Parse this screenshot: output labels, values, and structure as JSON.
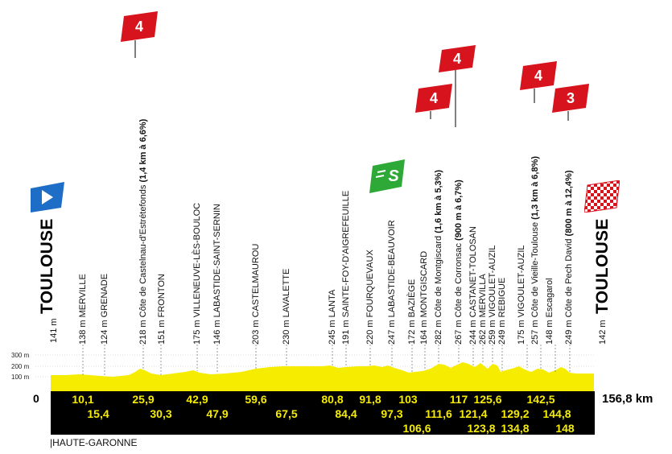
{
  "start": {
    "city": "TOULOUSE",
    "altitude": "141 m",
    "km": "0"
  },
  "finish": {
    "city": "TOULOUSE",
    "altitude": "142 m",
    "km": "156,8 km"
  },
  "axis": {
    "alt300": "300 m",
    "alt200": "200 m",
    "alt100": "100 m"
  },
  "region": "|HAUTE-GARONNE",
  "waypoints": [
    {
      "alt": "138 m",
      "name": "MERVILLE",
      "detail": ""
    },
    {
      "alt": "124 m",
      "name": "GRENADE",
      "detail": ""
    },
    {
      "alt": "218 m",
      "name": "Côte de Castelnau-d'Estrétefonds",
      "detail": "(1,4 km à 6,6%)"
    },
    {
      "alt": "151 m",
      "name": "FRONTON",
      "detail": ""
    },
    {
      "alt": "175 m",
      "name": "VILLENEUVE-LÈS-BOULOC",
      "detail": ""
    },
    {
      "alt": "146 m",
      "name": "LABASTIDE-SAINT-SERNIN",
      "detail": ""
    },
    {
      "alt": "203 m",
      "name": "CASTELMAUROU",
      "detail": ""
    },
    {
      "alt": "230 m",
      "name": "LAVALETTE",
      "detail": ""
    },
    {
      "alt": "245 m",
      "name": "LANTA",
      "detail": ""
    },
    {
      "alt": "191 m",
      "name": "SAINTE-FOY-D'AIGREFEUILLE",
      "detail": ""
    },
    {
      "alt": "220 m",
      "name": "FOURQUEVAUX",
      "detail": ""
    },
    {
      "alt": "247 m",
      "name": "LABASTIDE-BEAUVOIR",
      "detail": ""
    },
    {
      "alt": "172 m",
      "name": "BAZIÈGE",
      "detail": ""
    },
    {
      "alt": "164 m",
      "name": "MONTGISCARD",
      "detail": ""
    },
    {
      "alt": "282 m",
      "name": "Côte de Montgiscard",
      "detail": "(1,6 km à 5,3%)"
    },
    {
      "alt": "267 m",
      "name": "Côte de Corronsac",
      "detail": "(900 m à 6,7%)"
    },
    {
      "alt": "244 m",
      "name": "CASTANET-TOLOSAN",
      "detail": ""
    },
    {
      "alt": "262 m",
      "name": "MERVILLA",
      "detail": ""
    },
    {
      "alt": "259 m",
      "name": "VIGOULET-AUZIL",
      "detail": ""
    },
    {
      "alt": "249 m",
      "name": "REBIGUE",
      "detail": ""
    },
    {
      "alt": "175 m",
      "name": "VIGOULET-AUZIL",
      "detail": ""
    },
    {
      "alt": "257 m",
      "name": "Côte de Vieille-Toulouse",
      "detail": "(1,3 km à 6,8%)"
    },
    {
      "alt": "148 m",
      "name": "Escagarol",
      "detail": ""
    },
    {
      "alt": "249 m",
      "name": "Côte de Pech David",
      "detail": "(800 m à 12,4%)"
    }
  ],
  "km_marks": [
    "10,1",
    "15,4",
    "25,9",
    "30,3",
    "42,9",
    "47,9",
    "59,6",
    "67,5",
    "80,8",
    "84,4",
    "91,8",
    "97,3",
    "103",
    "106,6",
    "111,6",
    "117",
    "121,4",
    "123,8",
    "125,6",
    "129,2",
    "134,8",
    "142,5",
    "144,8",
    "148"
  ],
  "flags": {
    "cat_castelnau": "4",
    "cat_montgiscard": "4",
    "cat_corronsac": "4",
    "cat_vieille": "4",
    "cat_pech": "3",
    "sprint": "S"
  },
  "colors": {
    "profile": "#f5ec00",
    "band": "#000000",
    "climb_red": "#d7141e",
    "sprint_green": "#2ea836",
    "start_blue": "#1e6ec8"
  }
}
